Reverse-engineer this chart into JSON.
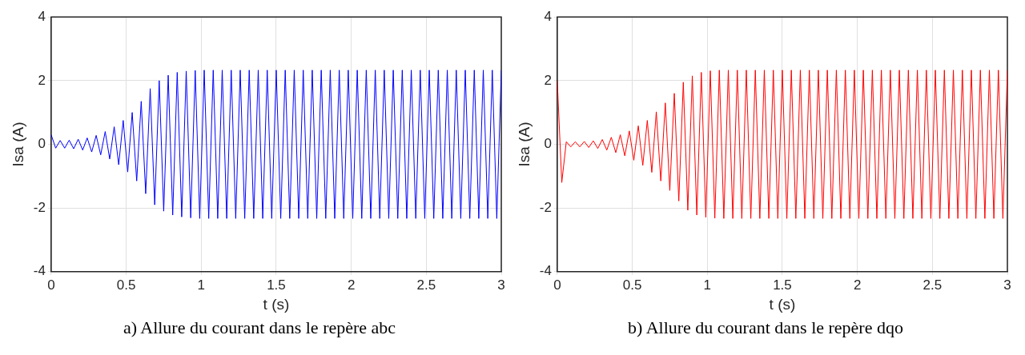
{
  "chart_data": [
    {
      "type": "line",
      "xlabel": "t (s)",
      "ylabel": "Isa (A)",
      "xlim": [
        0,
        3
      ],
      "xticks": [
        0,
        0.5,
        1,
        1.5,
        2,
        2.5,
        3
      ],
      "ylim": [
        -4,
        4
      ],
      "yticks": [
        -4,
        -2,
        0,
        2,
        4
      ],
      "grid": true,
      "legend": false,
      "x": [
        0,
        0.03,
        0.06,
        0.09,
        0.12,
        0.15,
        0.18,
        0.21,
        0.24,
        0.27,
        0.3,
        0.33,
        0.36,
        0.39,
        0.42,
        0.45,
        0.48,
        0.51,
        0.54,
        0.57,
        0.6,
        0.63,
        0.66,
        0.69,
        0.72,
        0.75,
        0.78,
        0.81,
        0.84,
        0.87,
        0.9,
        0.93,
        0.96,
        0.99,
        1.02,
        1.05,
        1.08,
        1.11,
        1.14,
        1.17,
        1.2,
        1.23,
        1.26,
        1.29,
        1.32,
        1.35,
        1.38,
        1.41,
        1.44,
        1.47,
        1.5,
        1.53,
        1.56,
        1.59,
        1.62,
        1.65,
        1.68,
        1.71,
        1.74,
        1.77,
        1.8,
        1.83,
        1.86,
        1.89,
        1.92,
        1.95,
        1.98,
        2.01,
        2.04,
        2.07,
        2.1,
        2.13,
        2.16,
        2.19,
        2.22,
        2.25,
        2.28,
        2.31,
        2.34,
        2.37,
        2.4,
        2.43,
        2.46,
        2.49,
        2.52,
        2.55,
        2.58,
        2.61,
        2.64,
        2.67,
        2.7,
        2.73,
        2.76,
        2.79,
        2.82,
        2.85,
        2.88,
        2.91,
        2.94,
        2.97,
        3.0
      ],
      "series": [
        {
          "color": "#0000ff",
          "values": [
            0.3,
            -0.12,
            0.12,
            -0.12,
            0.13,
            -0.14,
            0.16,
            -0.18,
            0.2,
            -0.24,
            0.28,
            -0.33,
            0.4,
            -0.46,
            0.55,
            -0.64,
            0.75,
            -0.87,
            1.0,
            -1.15,
            1.35,
            -1.55,
            1.75,
            -1.9,
            2.0,
            -2.1,
            2.17,
            -2.22,
            2.26,
            -2.28,
            2.3,
            -2.31,
            2.32,
            -2.33,
            2.33,
            -2.33,
            2.33,
            -2.33,
            2.33,
            -2.33,
            2.33,
            -2.33,
            2.33,
            -2.33,
            2.33,
            -2.33,
            2.33,
            -2.33,
            2.33,
            -2.33,
            2.33,
            -2.33,
            2.33,
            -2.33,
            2.33,
            -2.33,
            2.33,
            -2.33,
            2.33,
            -2.33,
            2.33,
            -2.33,
            2.33,
            -2.33,
            2.33,
            -2.33,
            2.33,
            -2.33,
            2.33,
            -2.33,
            2.33,
            -2.33,
            2.33,
            -2.33,
            2.33,
            -2.33,
            2.33,
            -2.33,
            2.33,
            -2.33,
            2.33,
            -2.33,
            2.33,
            -2.33,
            2.33,
            -2.33,
            2.33,
            -2.33,
            2.33,
            -2.33,
            2.33,
            -2.33,
            2.33,
            -2.33,
            2.33,
            -2.33,
            2.33,
            -2.33,
            2.33,
            -2.33,
            2.33
          ]
        }
      ],
      "annotations": [
        "a)   Allure du courant dans le repère abc"
      ]
    },
    {
      "type": "line",
      "xlabel": "t (s)",
      "ylabel": "Isa (A)",
      "xlim": [
        0,
        3
      ],
      "xticks": [
        0,
        0.5,
        1,
        1.5,
        2,
        2.5,
        3
      ],
      "ylim": [
        -4,
        4
      ],
      "yticks": [
        -4,
        -2,
        0,
        2,
        4
      ],
      "grid": true,
      "legend": false,
      "x": [
        0,
        0.03,
        0.06,
        0.09,
        0.12,
        0.15,
        0.18,
        0.21,
        0.24,
        0.27,
        0.3,
        0.33,
        0.36,
        0.39,
        0.42,
        0.45,
        0.48,
        0.51,
        0.54,
        0.57,
        0.6,
        0.63,
        0.66,
        0.69,
        0.72,
        0.75,
        0.78,
        0.81,
        0.84,
        0.87,
        0.9,
        0.93,
        0.96,
        0.99,
        1.02,
        1.05,
        1.08,
        1.11,
        1.14,
        1.17,
        1.2,
        1.23,
        1.26,
        1.29,
        1.32,
        1.35,
        1.38,
        1.41,
        1.44,
        1.47,
        1.5,
        1.53,
        1.56,
        1.59,
        1.62,
        1.65,
        1.68,
        1.71,
        1.74,
        1.77,
        1.8,
        1.83,
        1.86,
        1.89,
        1.92,
        1.95,
        1.98,
        2.01,
        2.04,
        2.07,
        2.1,
        2.13,
        2.16,
        2.19,
        2.22,
        2.25,
        2.28,
        2.31,
        2.34,
        2.37,
        2.4,
        2.43,
        2.46,
        2.49,
        2.52,
        2.55,
        2.58,
        2.61,
        2.64,
        2.67,
        2.7,
        2.73,
        2.76,
        2.79,
        2.82,
        2.85,
        2.88,
        2.91,
        2.94,
        2.97,
        3.0
      ],
      "series": [
        {
          "color": "#ff0000",
          "values": [
            2.0,
            -1.2,
            0.08,
            -0.08,
            0.08,
            -0.08,
            0.09,
            -0.1,
            0.11,
            -0.13,
            0.15,
            -0.18,
            0.22,
            -0.26,
            0.3,
            -0.36,
            0.42,
            -0.5,
            0.58,
            -0.66,
            0.75,
            -0.88,
            1.02,
            -1.15,
            1.3,
            -1.45,
            1.6,
            -1.78,
            1.95,
            -2.07,
            2.15,
            -2.22,
            2.26,
            -2.29,
            2.31,
            -2.32,
            2.33,
            -2.33,
            2.33,
            -2.33,
            2.33,
            -2.33,
            2.33,
            -2.33,
            2.33,
            -2.33,
            2.33,
            -2.33,
            2.33,
            -2.33,
            2.33,
            -2.33,
            2.33,
            -2.33,
            2.33,
            -2.33,
            2.33,
            -2.33,
            2.33,
            -2.33,
            2.33,
            -2.33,
            2.33,
            -2.33,
            2.33,
            -2.33,
            2.33,
            -2.33,
            2.33,
            -2.33,
            2.33,
            -2.33,
            2.33,
            -2.33,
            2.33,
            -2.33,
            2.33,
            -2.33,
            2.33,
            -2.33,
            2.33,
            -2.33,
            2.33,
            -2.33,
            2.33,
            -2.33,
            2.33,
            -2.33,
            2.33,
            -2.33,
            2.33,
            -2.33,
            2.33,
            -2.33,
            2.33,
            -2.33,
            2.33,
            -2.33,
            2.33,
            -2.33,
            2.33
          ]
        }
      ],
      "annotations": [
        "b)   Allure du courant dans le repère dqo"
      ]
    }
  ]
}
